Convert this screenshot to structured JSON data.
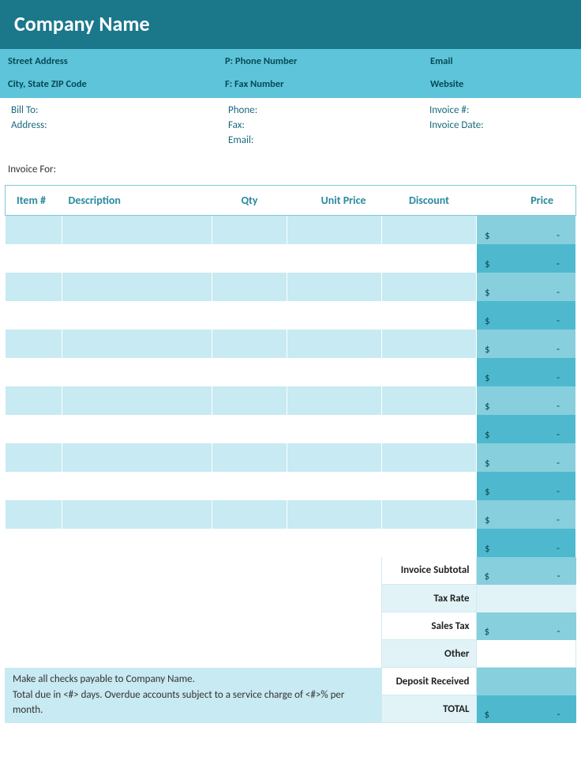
{
  "header": {
    "company_name": "Company Name"
  },
  "company": {
    "street": "Street Address",
    "phone_label": "P: Phone Number",
    "email": "Email",
    "city_state_zip": "City, State ZIP Code",
    "fax_label": "F: Fax Number",
    "website": "Website"
  },
  "meta": {
    "bill_to": "Bill To:",
    "phone": "Phone:",
    "invoice_num": "Invoice #:",
    "address": "Address:",
    "fax": "Fax:",
    "invoice_date": "Invoice Date:",
    "email": "Email:"
  },
  "invoice_for_label": "Invoice For:",
  "columns": {
    "item": "Item #",
    "description": "Description",
    "qty": "Qty",
    "unit_price": "Unit Price",
    "discount": "Discount",
    "price": "Price"
  },
  "price_placeholder": {
    "currency": "$",
    "dash": "-"
  },
  "row_count": 12,
  "summary": {
    "subtotal": "Invoice Subtotal",
    "tax_rate": "Tax Rate",
    "sales_tax": "Sales Tax",
    "other": "Other",
    "deposit": "Deposit Received",
    "total": "TOTAL"
  },
  "footer": {
    "line1": "Make all checks payable to Company Name.",
    "line2": "Total due in <#> days. Overdue accounts subject to a service charge of <#>% per month."
  },
  "colors": {
    "header_bg": "#1b788b",
    "info_bg": "#5ec4d9",
    "row_odd": "#c8eaf2",
    "row_even": "#ffffff",
    "price_odd": "#87cfdd",
    "price_even": "#4eb9ce",
    "accent_text": "#2a8aa0"
  }
}
